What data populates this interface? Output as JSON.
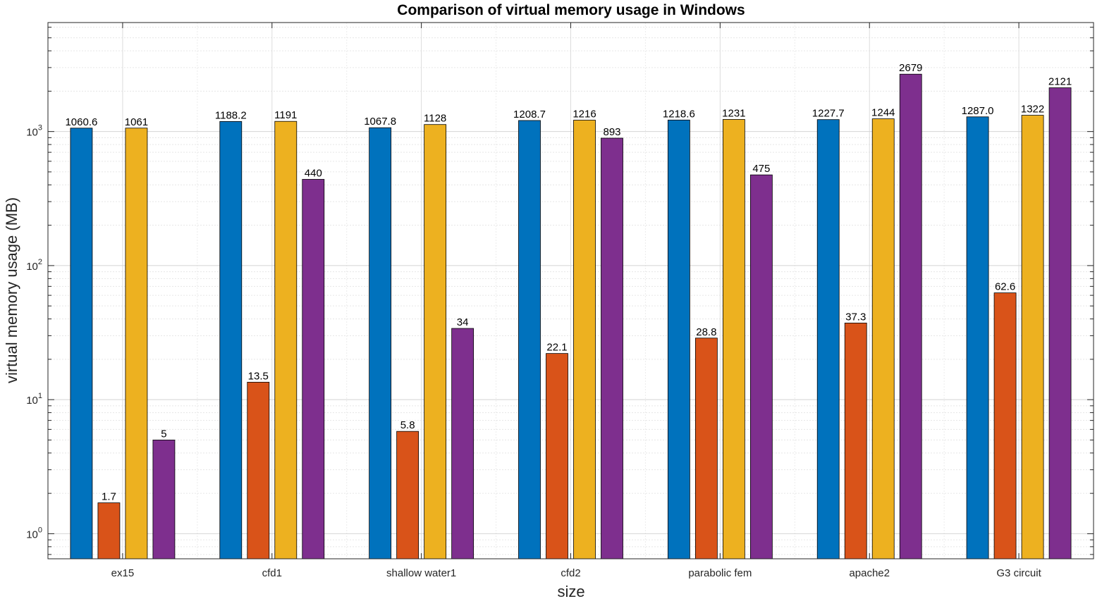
{
  "chart_data": {
    "type": "bar",
    "title": "Comparison of virtual memory usage in Windows",
    "xlabel": "size",
    "ylabel": "virtual memory usage (MB)",
    "yscale": "log",
    "ylim": [
      0.65,
      6500
    ],
    "grid": true,
    "legend": "none",
    "categories": [
      "ex15",
      "cfd1",
      "shallow water1",
      "cfd2",
      "parabolic fem",
      "apache2",
      "G3 circuit"
    ],
    "series": [
      {
        "color": "#0072BD",
        "values": [
          1060.6,
          1188.2,
          1067.8,
          1208.7,
          1218.6,
          1227.7,
          1287.0
        ],
        "labels": [
          "1060.6",
          "1188.2",
          "1067.8",
          "1208.7",
          "1218.6",
          "1227.7",
          "1287.0"
        ]
      },
      {
        "color": "#D95319",
        "values": [
          1.7,
          13.5,
          5.8,
          22.1,
          28.8,
          37.3,
          62.6
        ],
        "labels": [
          "1.7",
          "13.5",
          "5.8",
          "22.1",
          "28.8",
          "37.3",
          "62.6"
        ]
      },
      {
        "color": "#EDB120",
        "values": [
          1061,
          1191,
          1128,
          1216,
          1231,
          1244,
          1322
        ],
        "labels": [
          "1061",
          "1191",
          "1128",
          "1216",
          "1231",
          "1244",
          "1322"
        ]
      },
      {
        "color": "#7E2F8E",
        "values": [
          5,
          440,
          34,
          893,
          475,
          2679,
          2121
        ],
        "labels": [
          "5",
          "440",
          "34",
          "893",
          "475",
          "2679",
          "2121"
        ]
      }
    ],
    "y_ticks": [
      {
        "value": 1,
        "base": "10",
        "exp": "0"
      },
      {
        "value": 10,
        "base": "10",
        "exp": "1"
      },
      {
        "value": 100,
        "base": "10",
        "exp": "2"
      },
      {
        "value": 1000,
        "base": "10",
        "exp": "3"
      }
    ]
  }
}
